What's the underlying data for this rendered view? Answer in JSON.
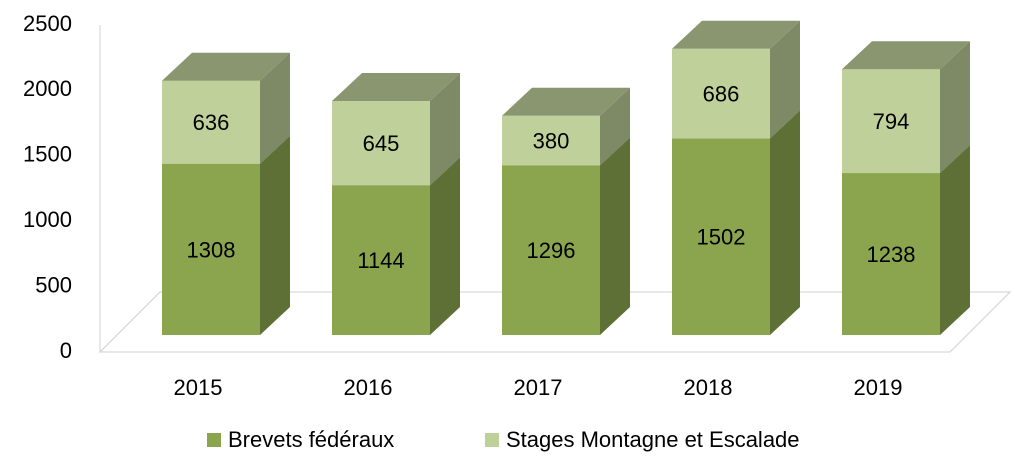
{
  "chart_data": {
    "type": "bar3d_stacked",
    "categories": [
      "2015",
      "2016",
      "2017",
      "2018",
      "2019"
    ],
    "series": [
      {
        "name": "Brevets fédéraux",
        "color": "#8aa54e",
        "values": [
          1308,
          1144,
          1296,
          1502,
          1238
        ]
      },
      {
        "name": "Stages Montagne et Escalade",
        "color": "#bfd09a",
        "values": [
          636,
          645,
          380,
          686,
          794
        ]
      }
    ],
    "ylim": [
      0,
      2500
    ],
    "yticks": [
      0,
      500,
      1000,
      1500,
      2000,
      2500
    ],
    "legend": "bottom"
  }
}
